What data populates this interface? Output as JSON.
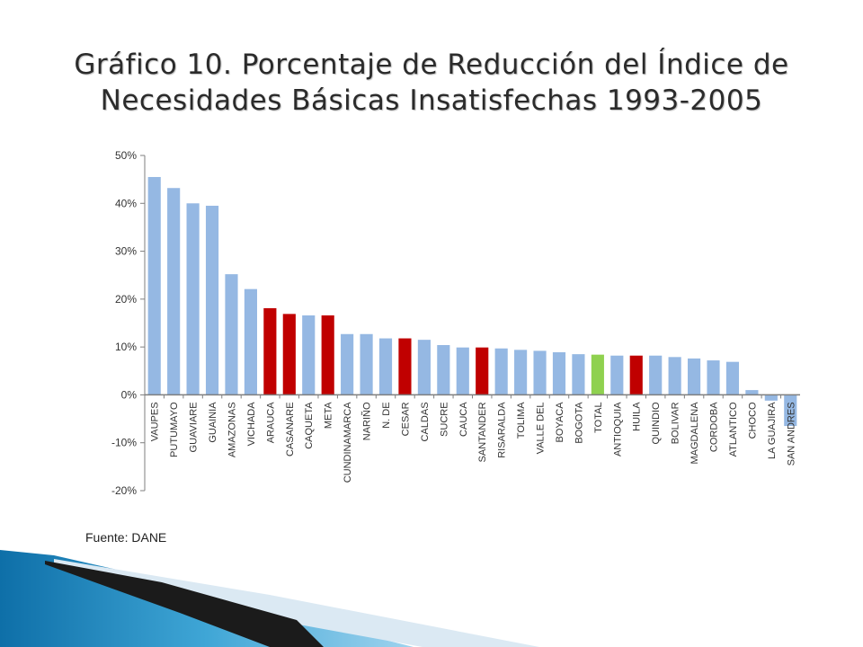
{
  "slide": {
    "title_line1": "Gráfico 10. Porcentaje de Reducción del Índice de",
    "title_line2": "Necesidades Básicas Insatisfechas 1993-2005",
    "source": "Fuente: DANE"
  },
  "colors": {
    "default": "#95b8e3",
    "highlight": "#c00000",
    "total": "#8fd14f",
    "axis": "#7f7f7f"
  },
  "chart_data": {
    "type": "bar",
    "title": "",
    "xlabel": "",
    "ylabel": "",
    "ylim": [
      -20,
      50
    ],
    "yticks": [
      50,
      40,
      30,
      20,
      10,
      0,
      -10,
      -20
    ],
    "ytick_labels": [
      "50%",
      "40%",
      "30%",
      "20%",
      "10%",
      "0%",
      "-10%",
      "-20%"
    ],
    "grid": false,
    "categories": [
      "VAUPES",
      "PUTUMAYO",
      "GUAVIARE",
      "GUAINIA",
      "AMAZONAS",
      "VICHADA",
      "ARAUCA",
      "CASANARE",
      "CAQUETA",
      "META",
      "CUNDINAMARCA",
      "NARIÑO",
      "N. DE",
      "CESAR",
      "CALDAS",
      "SUCRE",
      "CAUCA",
      "SANTANDER",
      "RISARALDA",
      "TOLIMA",
      "VALLE DEL",
      "BOYACA",
      "BOGOTA",
      "TOTAL",
      "ANTIOQUIA",
      "HUILA",
      "QUINDIO",
      "BOLIVAR",
      "MAGDALENA",
      "CORDOBA",
      "ATLANTICO",
      "CHOCO",
      "LA GUAJIRA",
      "SAN ANDRES"
    ],
    "values": [
      45.5,
      43.2,
      40.0,
      39.5,
      25.2,
      22.1,
      18.1,
      16.9,
      16.6,
      16.6,
      12.7,
      12.7,
      11.8,
      11.8,
      11.5,
      10.4,
      9.9,
      9.9,
      9.7,
      9.4,
      9.2,
      8.9,
      8.5,
      8.4,
      8.2,
      8.2,
      8.2,
      7.9,
      7.6,
      7.2,
      6.9,
      1.0,
      -1.2,
      -6.5
    ],
    "bar_colors": [
      "default",
      "default",
      "default",
      "default",
      "default",
      "default",
      "highlight",
      "highlight",
      "default",
      "highlight",
      "default",
      "default",
      "default",
      "highlight",
      "default",
      "default",
      "default",
      "highlight",
      "default",
      "default",
      "default",
      "default",
      "default",
      "total",
      "default",
      "highlight",
      "default",
      "default",
      "default",
      "default",
      "default",
      "default",
      "default",
      "default"
    ]
  }
}
